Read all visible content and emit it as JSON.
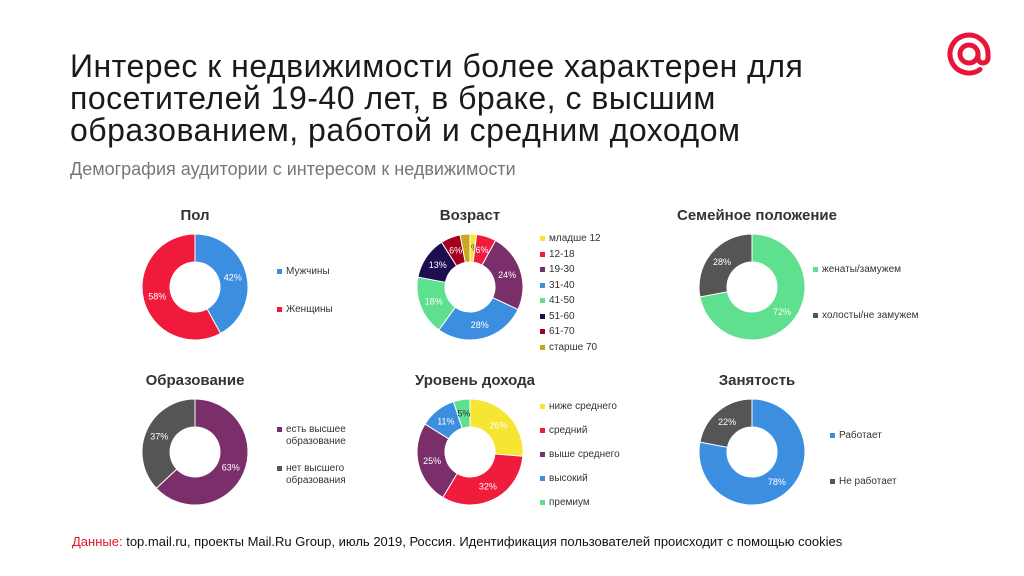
{
  "slide": {
    "title": "Интерес к недвижимости более характерен для посетителей 19-40 лет, в браке, с высшим образованием, работой и средним доходом",
    "subtitle": "Демография аудитории с интересом к недвижимости",
    "footer_label": "Данные:",
    "footer_text": "top.mail.ru, проекты Mail.Ru Group, июль 2019, Россия. Идентификация пользователей происходит с помощью cookies",
    "logo_icon": "mail-ru-at-icon",
    "logo_color": "#e8153a"
  },
  "chart_data": [
    {
      "id": "gender",
      "type": "pie",
      "title": "Пол",
      "categories": [
        "Мужчины",
        "Женщины"
      ],
      "values": [
        42,
        58
      ],
      "colors": [
        "#3c8fe0",
        "#f01a3a"
      ],
      "labels": [
        "42%",
        "58%"
      ],
      "legend_position": "right"
    },
    {
      "id": "age",
      "type": "pie",
      "title": "Возраст",
      "categories": [
        "младше 12",
        "12-18",
        "19-30",
        "31-40",
        "41-50",
        "51-60",
        "61-70",
        "старше 70"
      ],
      "values": [
        2,
        6,
        24,
        28,
        18,
        13,
        6,
        3
      ],
      "colors": [
        "#f7e534",
        "#ef1c3c",
        "#7a2f6b",
        "#3c8fe0",
        "#5ee08e",
        "#1e0d4f",
        "#a3001f",
        "#c8a820"
      ],
      "labels": [
        "2%",
        "6%",
        "24%",
        "28%",
        "18%",
        "13%",
        "6%",
        ""
      ],
      "legend_position": "right"
    },
    {
      "id": "marital",
      "type": "pie",
      "title": "Семейное положение",
      "categories": [
        "женаты/замужем",
        "холосты/не замужем"
      ],
      "values": [
        72,
        28
      ],
      "colors": [
        "#5ee08e",
        "#555555"
      ],
      "labels": [
        "72%",
        "28%"
      ],
      "legend_position": "right"
    },
    {
      "id": "education",
      "type": "pie",
      "title": "Образование",
      "categories": [
        "есть высшее образование",
        "нет высшего образования"
      ],
      "values": [
        63,
        37
      ],
      "colors": [
        "#7a2f6b",
        "#555555"
      ],
      "labels": [
        "63%",
        "37%"
      ],
      "legend_position": "right"
    },
    {
      "id": "income",
      "type": "pie",
      "title": "Уровень дохода",
      "categories": [
        "ниже среднего",
        "средний",
        "выше среднего",
        "высокий",
        "премиум"
      ],
      "values": [
        26,
        32,
        25,
        11,
        5
      ],
      "colors": [
        "#f7e534",
        "#ef1c3c",
        "#7a2f6b",
        "#3c8fe0",
        "#5ee08e"
      ],
      "labels": [
        "26%",
        "32%",
        "25%",
        "11%",
        "5%"
      ],
      "legend_position": "right"
    },
    {
      "id": "employment",
      "type": "pie",
      "title": "Занятость",
      "categories": [
        "Работает",
        "Не работает"
      ],
      "values": [
        78,
        22
      ],
      "colors": [
        "#3c8fe0",
        "#555555"
      ],
      "labels": [
        "78%",
        "22%"
      ],
      "legend_position": "right"
    }
  ]
}
